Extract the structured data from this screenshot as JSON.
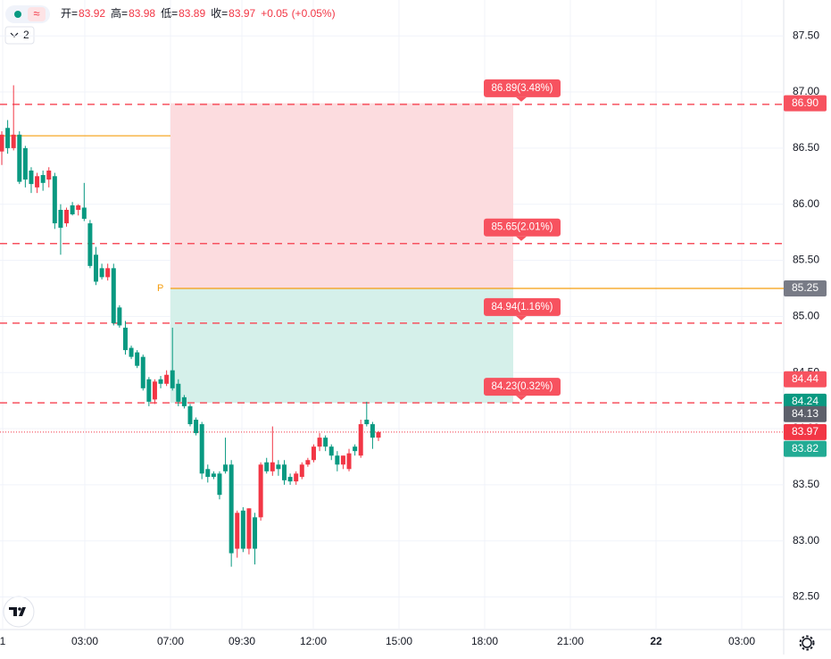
{
  "chart_data": {
    "type": "candlestick",
    "header": {
      "items": [
        {
          "label": "开=",
          "value": 83.92
        },
        {
          "label": "高=",
          "value": 83.98
        },
        {
          "label": "低=",
          "value": 83.89
        },
        {
          "label": "收=",
          "value": 83.97
        }
      ],
      "change": "+0.05",
      "change_pct": "(+0.05%)",
      "indicator_count": "2"
    },
    "ylim": [
      82.21,
      87.82
    ],
    "yticks": [
      {
        "value": 82.5,
        "label": "82.50"
      },
      {
        "value": 83,
        "label": "83.00"
      },
      {
        "value": 83.5,
        "label": "83.50"
      },
      {
        "value": 84,
        "label": "84.00"
      },
      {
        "value": 84.5,
        "label": "84.50"
      },
      {
        "value": 85,
        "label": "85.00"
      },
      {
        "value": 85.5,
        "label": "85.50"
      },
      {
        "value": 86,
        "label": "86.00"
      },
      {
        "value": 86.5,
        "label": "86.50"
      },
      {
        "value": 87,
        "label": "87.00"
      },
      {
        "value": 87.5,
        "label": "87.50"
      }
    ],
    "xticks": [
      "1",
      "03:00",
      "07:00",
      "09:30",
      "12:00",
      "15:00",
      "18:00",
      "21:00",
      "22",
      "03:00"
    ],
    "grid": true,
    "up_color": "#f23645",
    "down_color": "#089981",
    "candles": {
      "open": [
        86.47,
        86.68,
        86.5,
        86.62,
        86.5,
        86.3,
        86.15,
        86.26,
        86.22,
        86.25,
        85.95,
        85.83,
        85.99,
        85.95,
        85.97,
        85.83,
        85.55,
        85.43,
        85.35,
        85.43,
        85.08,
        84.9,
        84.72,
        84.68,
        84.64,
        84.44,
        84.26,
        84.44,
        84.4,
        84.52,
        84.4,
        84.28,
        84.2,
        84.08,
        84.04,
        83.64,
        83.6,
        83.6,
        83.68,
        83.68,
        82.93,
        83.27,
        82.93,
        83.21,
        83.21,
        83.7,
        83.62,
        83.68,
        83.68,
        83.57,
        83.53,
        83.57,
        83.68,
        83.72,
        83.84,
        83.92,
        83.84,
        83.76,
        83.68,
        83.64,
        83.84,
        83.76,
        84.08,
        84.04,
        83.92
      ],
      "high": [
        86.65,
        86.75,
        87.06,
        86.65,
        86.52,
        86.33,
        86.28,
        86.3,
        86.33,
        86.28,
        86,
        85.97,
        86.02,
        86,
        86.19,
        85.86,
        85.62,
        85.47,
        85.47,
        85.47,
        85.1,
        84.96,
        84.74,
        84.7,
        84.66,
        84.46,
        84.44,
        84.47,
        84.52,
        84.9,
        84.44,
        84.3,
        84.22,
        84.1,
        84.06,
        83.68,
        83.62,
        83.62,
        83.92,
        83.72,
        83.27,
        83.3,
        83.29,
        83.25,
        83.7,
        83.74,
        84.02,
        83.72,
        83.72,
        83.6,
        83.62,
        83.7,
        83.74,
        83.86,
        83.96,
        83.94,
        83.86,
        83.8,
        83.76,
        83.82,
        83.86,
        84.08,
        84.24,
        84.06,
        83.98
      ],
      "low": [
        86.35,
        86.45,
        86.48,
        86.18,
        86.15,
        86.1,
        86.1,
        86.12,
        86.15,
        85.78,
        85.55,
        85.8,
        85.9,
        85.9,
        85.85,
        85.43,
        85.28,
        85.33,
        85.32,
        84.92,
        84.9,
        84.66,
        84.62,
        84.54,
        84.34,
        84.2,
        84.22,
        84.36,
        84.38,
        84.34,
        84.2,
        84.18,
        84.02,
        83.94,
        83.55,
        83.52,
        83.55,
        83.37,
        83.6,
        82.77,
        82.85,
        82.9,
        82.88,
        82.79,
        83.18,
        83.6,
        83.58,
        83.58,
        83.5,
        83.5,
        83.5,
        83.55,
        83.66,
        83.7,
        83.8,
        83.8,
        83.72,
        83.62,
        83.64,
        83.62,
        83.76,
        83.74,
        84.02,
        83.82,
        83.89
      ],
      "close": [
        86.62,
        86.5,
        86.62,
        86.2,
        86.22,
        86.18,
        86.25,
        86.19,
        86.3,
        85.83,
        85.79,
        85.95,
        85.91,
        85.99,
        85.87,
        85.45,
        85.31,
        85.35,
        85.43,
        84.94,
        84.92,
        84.7,
        84.64,
        84.56,
        84.36,
        84.24,
        84.42,
        84.4,
        84.48,
        84.36,
        84.24,
        84.2,
        84.04,
        83.96,
        83.6,
        83.57,
        83.57,
        83.41,
        83.62,
        82.89,
        83.25,
        82.93,
        83.29,
        82.93,
        83.68,
        83.62,
        83.7,
        83.64,
        83.54,
        83.53,
        83.6,
        83.68,
        83.72,
        83.84,
        83.92,
        83.84,
        83.76,
        83.68,
        83.76,
        83.78,
        83.8,
        84.04,
        84.04,
        83.92,
        83.97
      ]
    },
    "prior_level": {
      "value": 86.61,
      "color": "#f59d0e"
    },
    "position": {
      "take_profit": 86.9,
      "entry": 85.25,
      "stop_loss": 84.23,
      "entry_label": "P",
      "profit_color": "#fcdcdf",
      "loss_color": "#d5f0ea"
    },
    "targets": [
      {
        "value": 86.89,
        "label": "86.89(3.48%)"
      },
      {
        "value": 85.65,
        "label": "85.65(2.01%)"
      },
      {
        "value": 84.94,
        "label": "84.94(1.16%)"
      },
      {
        "value": 84.23,
        "label": "84.23(0.32%)"
      }
    ],
    "last_price": 83.97,
    "price_labels": [
      {
        "value": 86.9,
        "label": "86.90",
        "color": "#f7525f"
      },
      {
        "value": 85.25,
        "label": "85.25",
        "color": "#787b86"
      },
      {
        "value": 84.44,
        "label": "84.44",
        "color": "#f7525f"
      },
      {
        "value": 84.24,
        "label": "84.24",
        "color": "#089981"
      },
      {
        "value": 84.13,
        "label": "84.13",
        "color": "#5d606b"
      },
      {
        "value": 83.97,
        "label": "83.97",
        "color": "#f23645"
      },
      {
        "value": 83.82,
        "label": "83.82",
        "color": "#22ab94"
      }
    ]
  }
}
